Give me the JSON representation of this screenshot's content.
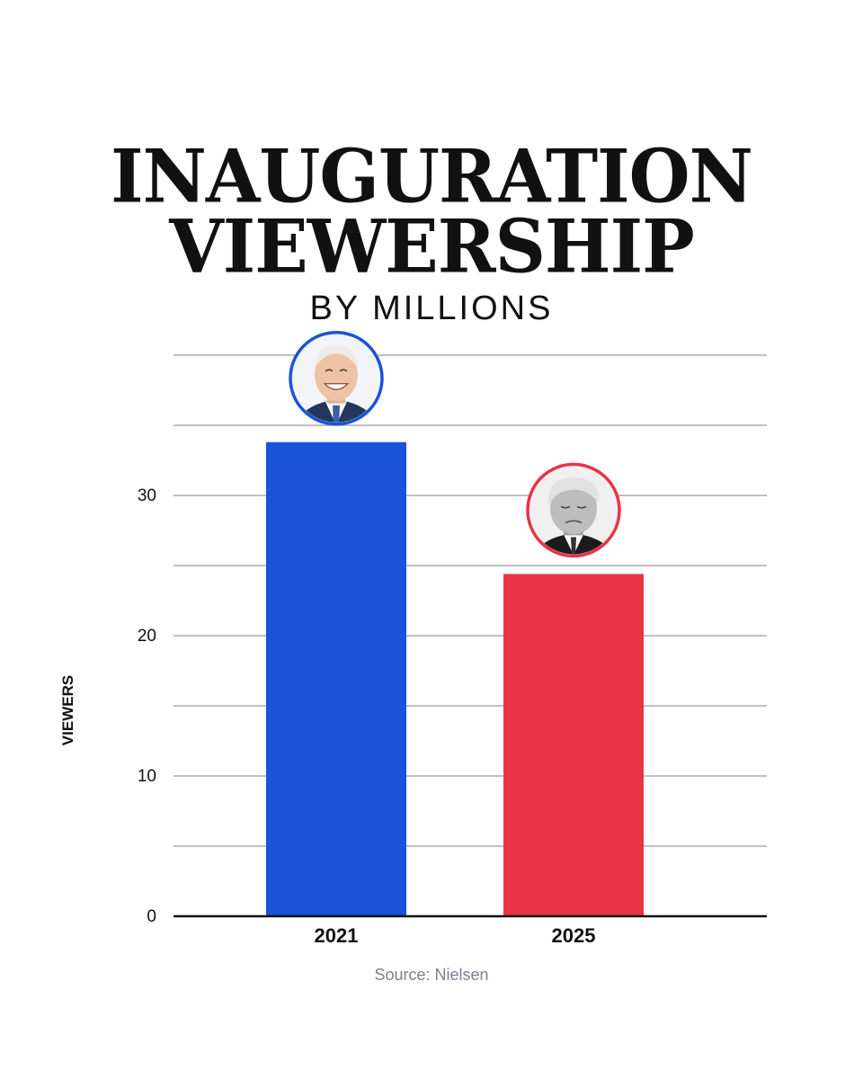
{
  "title_line1": "INAUGURATION",
  "title_line2": "VIEWERSHIP",
  "subtitle": "BY MILLIONS",
  "source": "Source: Nielsen",
  "chart_data": {
    "type": "bar",
    "categories": [
      "2021",
      "2025"
    ],
    "values": [
      33.8,
      24.4
    ],
    "colors": [
      "#1a53d9",
      "#e93345"
    ],
    "ylabel": "VIEWERS",
    "xlabel": "",
    "ylim": [
      0,
      40
    ],
    "yticks": [
      0,
      10,
      20,
      30
    ],
    "yticks_labeled": [
      "0",
      "10",
      "20",
      "30"
    ],
    "grid": true,
    "grid_step": 5,
    "portraits": [
      {
        "category": "2021",
        "icon": "biden-portrait",
        "ring_color": "#1a53d9"
      },
      {
        "category": "2025",
        "icon": "trump-portrait",
        "ring_color": "#e93345"
      }
    ]
  }
}
